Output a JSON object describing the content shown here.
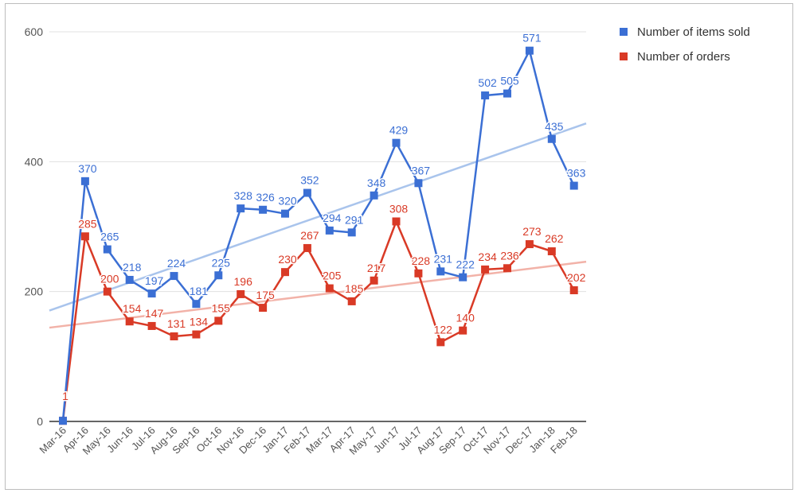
{
  "chart_data": {
    "type": "line",
    "title": "",
    "xlabel": "",
    "ylabel": "",
    "ylim": [
      0,
      600
    ],
    "yticks": [
      0,
      200,
      400,
      600
    ],
    "grid": true,
    "legend_position": "right",
    "categories": [
      "Mar-16",
      "Apr-16",
      "May-16",
      "Jun-16",
      "Jul-16",
      "Aug-16",
      "Sep-16",
      "Oct-16",
      "Nov-16",
      "Dec-16",
      "Jan-17",
      "Feb-17",
      "Mar-17",
      "Apr-17",
      "May-17",
      "Jun-17",
      "Jul-17",
      "Aug-17",
      "Sep-17",
      "Oct-17",
      "Nov-17",
      "Dec-17",
      "Jan-18",
      "Feb-18"
    ],
    "series": [
      {
        "name": "Number of items sold",
        "color": "#3b6fd4",
        "trend_color": "#a9c4ec",
        "values": [
          1,
          370,
          265,
          218,
          197,
          224,
          181,
          225,
          328,
          326,
          320,
          352,
          294,
          291,
          348,
          429,
          367,
          231,
          222,
          502,
          505,
          571,
          435,
          363
        ],
        "data_labels": [
          "",
          "370",
          "265",
          "218",
          "197",
          "224",
          "181",
          "225",
          "328",
          "326",
          "320",
          "352",
          "294",
          "291",
          "348",
          "429",
          "367",
          "231",
          "222",
          "502",
          "505",
          "571",
          "435",
          "363"
        ]
      },
      {
        "name": "Number of orders",
        "color": "#d93a26",
        "trend_color": "#f2b2a8",
        "values": [
          1,
          285,
          200,
          154,
          147,
          131,
          134,
          155,
          196,
          175,
          230,
          267,
          205,
          185,
          217,
          308,
          228,
          122,
          140,
          234,
          236,
          273,
          262,
          202
        ],
        "data_labels": [
          "1",
          "285",
          "200",
          "154",
          "147",
          "131",
          "134",
          "155",
          "196",
          "175",
          "230",
          "267",
          "205",
          "185",
          "217",
          "308",
          "228",
          "122",
          "140",
          "234",
          "236",
          "273",
          "262",
          "202"
        ]
      }
    ]
  }
}
